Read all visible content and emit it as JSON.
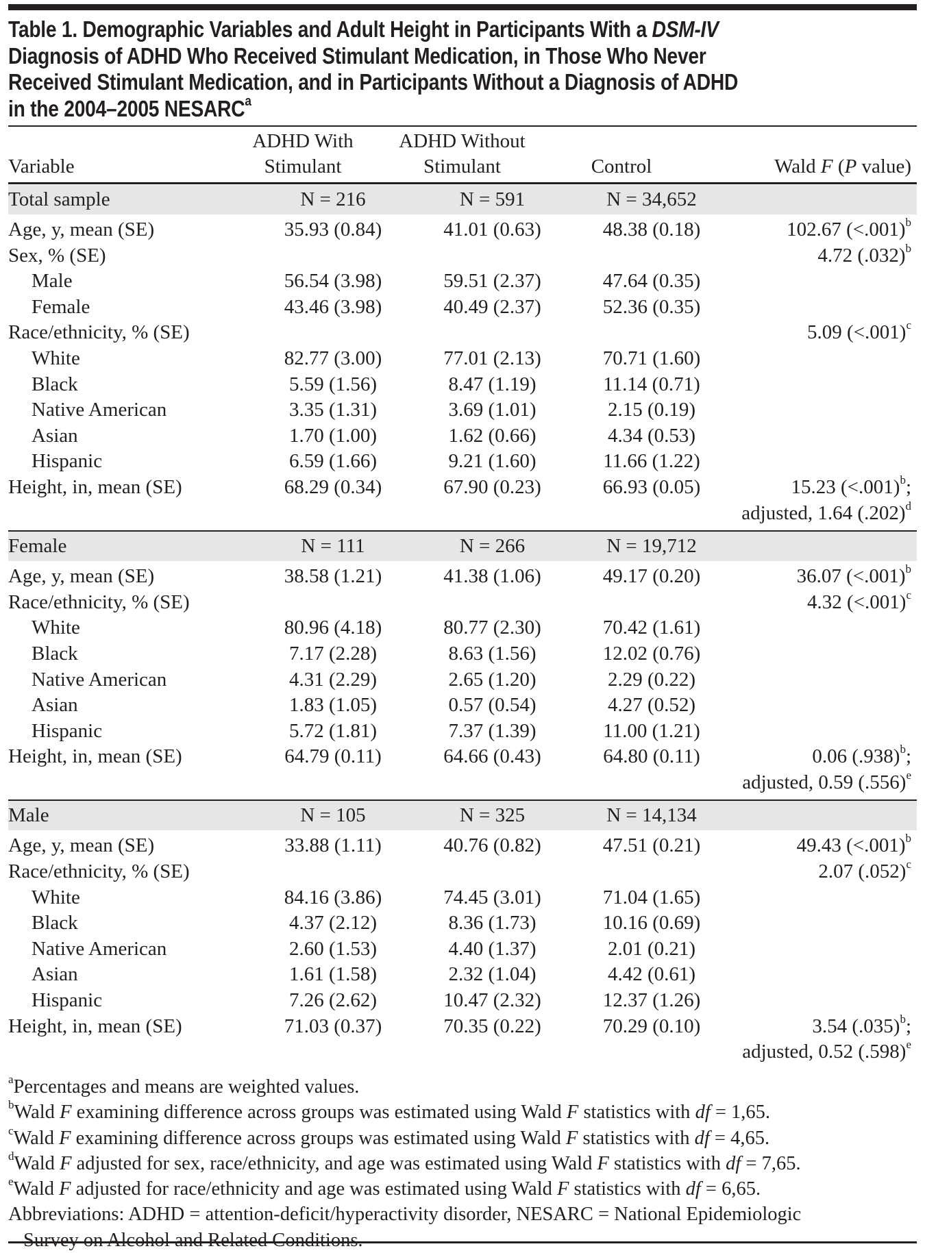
{
  "title": {
    "lines": [
      [
        {
          "t": "Table 1. Demographic Variables and Adult Height in Participants With a "
        },
        {
          "t": "DSM-IV",
          "i": true
        }
      ],
      [
        {
          "t": "Diagnosis of ADHD Who Received Stimulant Medication, in Those Who Never"
        }
      ],
      [
        {
          "t": "Received Stimulant Medication, and in Participants Without a Diagnosis of ADHD"
        }
      ],
      [
        {
          "t": "in the 2004–2005 NESARC"
        },
        {
          "t": "a",
          "sup": true
        }
      ]
    ]
  },
  "header": {
    "variable": "Variable",
    "col1_line1": "ADHD With",
    "col1_line2": "Stimulant",
    "col2_line1": "ADHD Without",
    "col2_line2": "Stimulant",
    "col3": "Control",
    "col4_a": "Wald ",
    "col4_f": "F",
    "col4_b": " (",
    "col4_p": "P",
    "col4_c": " value)"
  },
  "sections": [
    {
      "label": "Total sample",
      "n1": "N = 216",
      "n2": "N = 591",
      "n3": "N = 34,652",
      "rows": [
        {
          "v": "Age, y, mean (SE)",
          "a": "35.93 (0.84)",
          "b": "41.01 (0.63)",
          "c": "48.38 (0.18)",
          "w": "102.67 (<.001)",
          "ws": "b"
        },
        {
          "v": "Sex, % (SE)",
          "w": "4.72 (.032)",
          "ws": "b"
        },
        {
          "v": "Male",
          "ind": true,
          "a": "56.54 (3.98)",
          "b": "59.51 (2.37)",
          "c": "47.64 (0.35)"
        },
        {
          "v": "Female",
          "ind": true,
          "a": "43.46 (3.98)",
          "b": "40.49 (2.37)",
          "c": "52.36 (0.35)"
        },
        {
          "v": "Race/ethnicity, % (SE)",
          "w": "5.09 (<.001)",
          "ws": "c"
        },
        {
          "v": "White",
          "ind": true,
          "a": "82.77 (3.00)",
          "b": "77.01 (2.13)",
          "c": "70.71 (1.60)"
        },
        {
          "v": "Black",
          "ind": true,
          "a": "5.59 (1.56)",
          "b": "8.47 (1.19)",
          "c": "11.14 (0.71)"
        },
        {
          "v": "Native American",
          "ind": true,
          "a": "3.35 (1.31)",
          "b": "3.69 (1.01)",
          "c": "2.15 (0.19)"
        },
        {
          "v": "Asian",
          "ind": true,
          "a": "1.70 (1.00)",
          "b": "1.62 (0.66)",
          "c": "4.34 (0.53)"
        },
        {
          "v": "Hispanic",
          "ind": true,
          "a": "6.59 (1.66)",
          "b": "9.21 (1.60)",
          "c": "11.66 (1.22)"
        },
        {
          "v": "Height, in, mean (SE)",
          "a": "68.29 (0.34)",
          "b": "67.90 (0.23)",
          "c": "66.93 (0.05)",
          "w": "15.23 (<.001)",
          "ws": "b",
          "wt": ";",
          "w2": "adjusted, 1.64 (.202)",
          "w2s": "d"
        }
      ]
    },
    {
      "label": "Female",
      "n1": "N = 111",
      "n2": "N = 266",
      "n3": "N = 19,712",
      "rows": [
        {
          "v": "Age, y, mean (SE)",
          "a": "38.58 (1.21)",
          "b": "41.38 (1.06)",
          "c": "49.17 (0.20)",
          "w": "36.07 (<.001)",
          "ws": "b"
        },
        {
          "v": "Race/ethnicity, % (SE)",
          "w": "4.32 (<.001)",
          "ws": "c"
        },
        {
          "v": "White",
          "ind": true,
          "a": "80.96 (4.18)",
          "b": "80.77 (2.30)",
          "c": "70.42 (1.61)"
        },
        {
          "v": "Black",
          "ind": true,
          "a": "7.17 (2.28)",
          "b": "8.63 (1.56)",
          "c": "12.02 (0.76)"
        },
        {
          "v": "Native American",
          "ind": true,
          "a": "4.31 (2.29)",
          "b": "2.65 (1.20)",
          "c": "2.29 (0.22)"
        },
        {
          "v": "Asian",
          "ind": true,
          "a": "1.83 (1.05)",
          "b": "0.57 (0.54)",
          "c": "4.27 (0.52)"
        },
        {
          "v": "Hispanic",
          "ind": true,
          "a": "5.72 (1.81)",
          "b": "7.37 (1.39)",
          "c": "11.00 (1.21)"
        },
        {
          "v": "Height, in, mean (SE)",
          "a": "64.79 (0.11)",
          "b": "64.66 (0.43)",
          "c": "64.80 (0.11)",
          "w": "0.06 (.938)",
          "ws": "b",
          "wt": ";",
          "w2": "adjusted, 0.59 (.556)",
          "w2s": "e"
        }
      ]
    },
    {
      "label": "Male",
      "n1": "N = 105",
      "n2": "N = 325",
      "n3": "N = 14,134",
      "rows": [
        {
          "v": "Age, y, mean (SE)",
          "a": "33.88 (1.11)",
          "b": "40.76 (0.82)",
          "c": "47.51 (0.21)",
          "w": "49.43 (<.001)",
          "ws": "b"
        },
        {
          "v": "Race/ethnicity, % (SE)",
          "w": "2.07 (.052)",
          "ws": "c"
        },
        {
          "v": "White",
          "ind": true,
          "a": "84.16 (3.86)",
          "b": "74.45 (3.01)",
          "c": "71.04 (1.65)"
        },
        {
          "v": "Black",
          "ind": true,
          "a": "4.37 (2.12)",
          "b": "8.36 (1.73)",
          "c": "10.16 (0.69)"
        },
        {
          "v": "Native American",
          "ind": true,
          "a": "2.60 (1.53)",
          "b": "4.40 (1.37)",
          "c": "2.01 (0.21)"
        },
        {
          "v": "Asian",
          "ind": true,
          "a": "1.61 (1.58)",
          "b": "2.32 (1.04)",
          "c": "4.42 (0.61)"
        },
        {
          "v": "Hispanic",
          "ind": true,
          "a": "7.26 (2.62)",
          "b": "10.47 (2.32)",
          "c": "12.37 (1.26)"
        },
        {
          "v": "Height, in, mean (SE)",
          "a": "71.03 (0.37)",
          "b": "70.35 (0.22)",
          "c": "70.29 (0.10)",
          "w": "3.54 (.035)",
          "ws": "b",
          "wt": ";",
          "w2": "adjusted, 0.52 (.598)",
          "w2s": "e"
        }
      ]
    }
  ],
  "footnotes": [
    [
      {
        "t": "a",
        "sup": true
      },
      {
        "t": "Percentages and means are weighted values."
      }
    ],
    [
      {
        "t": "b",
        "sup": true
      },
      {
        "t": "Wald "
      },
      {
        "t": "F",
        "i": true
      },
      {
        "t": " examining difference across groups was estimated using Wald "
      },
      {
        "t": "F",
        "i": true
      },
      {
        "t": " statistics with "
      },
      {
        "t": "df",
        "i": true
      },
      {
        "t": " = 1,65."
      }
    ],
    [
      {
        "t": "c",
        "sup": true
      },
      {
        "t": "Wald "
      },
      {
        "t": "F",
        "i": true
      },
      {
        "t": " examining difference across groups was estimated using Wald "
      },
      {
        "t": "F",
        "i": true
      },
      {
        "t": " statistics with "
      },
      {
        "t": "df",
        "i": true
      },
      {
        "t": " = 4,65."
      }
    ],
    [
      {
        "t": "d",
        "sup": true
      },
      {
        "t": "Wald "
      },
      {
        "t": "F",
        "i": true
      },
      {
        "t": " adjusted for sex, race/ethnicity, and age was estimated using Wald "
      },
      {
        "t": "F",
        "i": true
      },
      {
        "t": " statistics with "
      },
      {
        "t": "df",
        "i": true
      },
      {
        "t": " = 7,65."
      }
    ],
    [
      {
        "t": "e",
        "sup": true
      },
      {
        "t": "Wald "
      },
      {
        "t": "F",
        "i": true
      },
      {
        "t": " adjusted for race/ethnicity and age was estimated using Wald "
      },
      {
        "t": "F",
        "i": true
      },
      {
        "t": " statistics with "
      },
      {
        "t": "df",
        "i": true
      },
      {
        "t": " = 6,65."
      }
    ],
    [
      {
        "t": "Abbreviations: ADHD = attention-deficit/hyperactivity disorder, NESARC = National Epidemiologic"
      }
    ],
    [
      {
        "t": "Survey on Alcohol and Related Conditions.",
        "cont": true
      }
    ]
  ]
}
